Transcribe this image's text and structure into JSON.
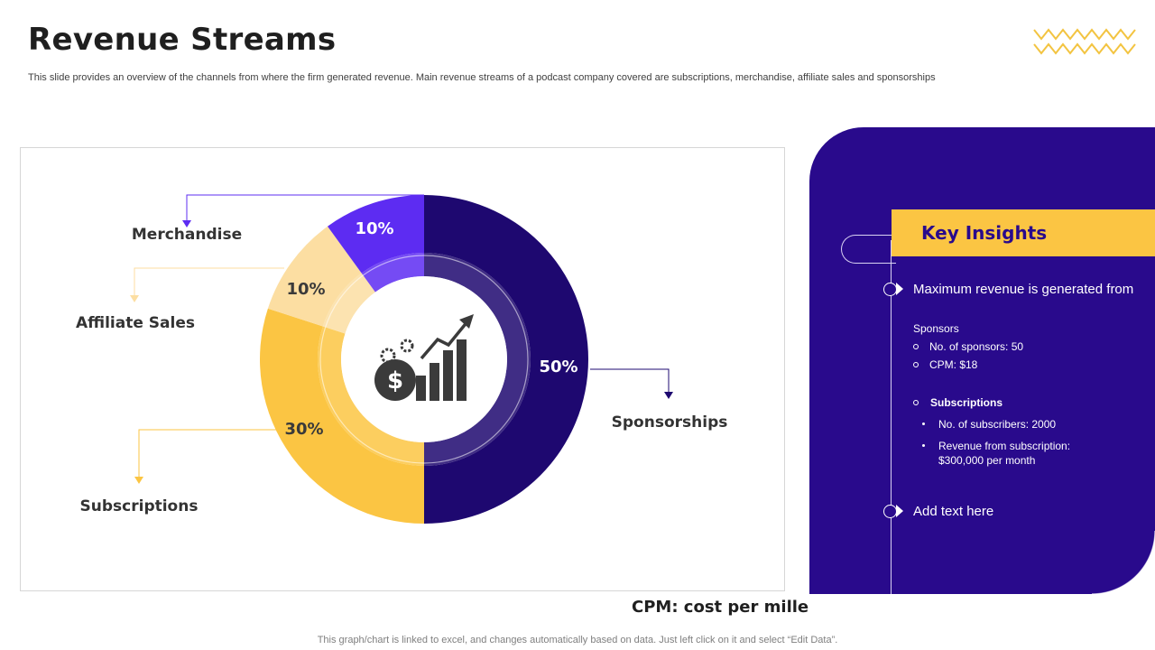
{
  "page": {
    "title": "Revenue Streams",
    "subtitle": "This slide provides an overview of the channels from where the firm generated revenue. Main revenue streams of a podcast company covered are subscriptions, merchandise, affiliate sales and sponsorships",
    "cpm_note": "CPM: cost per mille",
    "footer": "This graph/chart is linked to excel,  and changes automatically based on data. Just left click on it and select “Edit Data”."
  },
  "colors": {
    "sponsorships": "#1e0870",
    "subscriptions": "#fbc543",
    "affiliate": "#fcdea2",
    "merchandise": "#5d2cf2",
    "panel": "#290a8c"
  },
  "chart_data": {
    "type": "pie",
    "style": "donut",
    "title": "",
    "categories": [
      "Sponsorships",
      "Subscriptions",
      "Affiliate Sales",
      "Merchandise"
    ],
    "values": [
      50,
      30,
      10,
      10
    ],
    "labels": [
      "50%",
      "30%",
      "10%",
      "10%"
    ],
    "center_icon": "revenue-growth-icon"
  },
  "insights": {
    "title": "Key Insights",
    "point1": "Maximum revenue is generated from",
    "sponsors_heading": "Sponsors",
    "sponsors_items": [
      "No. of sponsors: 50",
      "CPM: $18"
    ],
    "subscriptions_heading": "Subscriptions",
    "subscriptions_items": [
      "No. of subscribers: 2000",
      "Revenue  from subscription:",
      "$300,000  per month"
    ],
    "point2": "Add text here"
  }
}
